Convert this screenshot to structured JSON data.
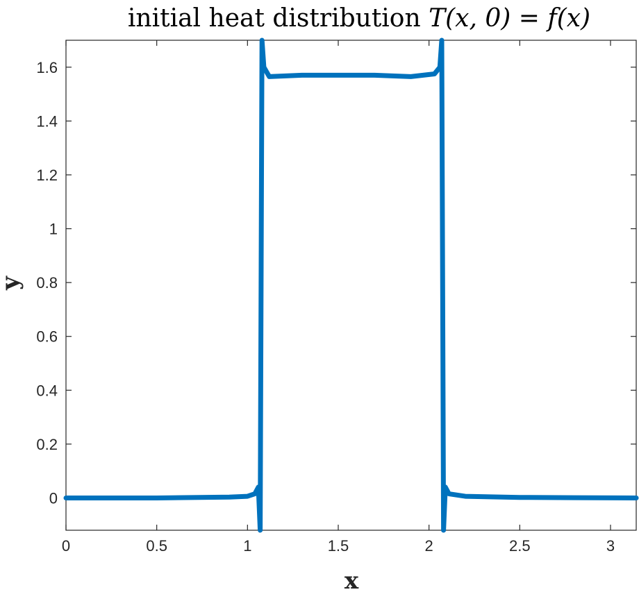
{
  "chart_data": {
    "type": "line",
    "title": "initial heat distribution",
    "title_math": "T(x, 0) = f(x)",
    "xlabel": "x",
    "ylabel": "y",
    "xlim": [
      0,
      3.1416
    ],
    "ylim": [
      -0.12,
      1.7
    ],
    "x_ticks": [
      0,
      0.5,
      1,
      1.5,
      2,
      2.5,
      3
    ],
    "x_tick_labels": [
      "0",
      "0.5",
      "1",
      "1.5",
      "2",
      "2.5",
      "3"
    ],
    "y_ticks": [
      0,
      0.2,
      0.4,
      0.6,
      0.8,
      1,
      1.2,
      1.4,
      1.6
    ],
    "y_tick_labels": [
      "0",
      "0.2",
      "0.4",
      "0.6",
      "0.8",
      "1",
      "1.2",
      "1.4",
      "1.6"
    ],
    "grid": false,
    "line_color": "#0072BD",
    "series": [
      {
        "x": [
          0,
          0.5,
          0.9,
          1.0,
          1.04,
          1.06,
          1.07,
          1.075,
          1.08,
          1.09,
          1.12,
          1.3,
          1.5,
          1.7,
          1.9,
          2.03,
          2.06,
          2.07,
          2.075,
          2.08,
          2.09,
          2.11,
          2.2,
          2.5,
          2.8,
          3.1416
        ],
        "y": [
          0,
          0,
          0.003,
          0.006,
          0.015,
          0.04,
          -0.12,
          0.79,
          1.7,
          1.6,
          1.565,
          1.57,
          1.57,
          1.57,
          1.565,
          1.575,
          1.6,
          1.7,
          0.79,
          -0.12,
          0.04,
          0.015,
          0.006,
          0.002,
          0.001,
          0
        ]
      }
    ]
  }
}
